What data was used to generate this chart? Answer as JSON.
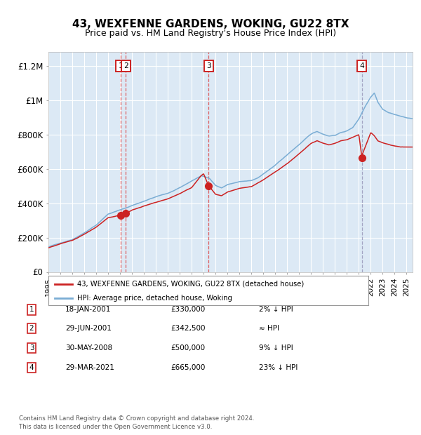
{
  "title": "43, WEXFENNE GARDENS, WOKING, GU22 8TX",
  "subtitle": "Price paid vs. HM Land Registry's House Price Index (HPI)",
  "bg_color": "#dce9f5",
  "hpi_line_color": "#7aadd4",
  "price_line_color": "#cc2222",
  "sale_dot_color": "#cc2222",
  "grid_color": "#ffffff",
  "sale_events": [
    {
      "label": "1",
      "date_x": 2001.05,
      "price": 330000
    },
    {
      "label": "2",
      "date_x": 2001.49,
      "price": 342500
    },
    {
      "label": "3",
      "date_x": 2008.41,
      "price": 500000
    },
    {
      "label": "4",
      "date_x": 2021.24,
      "price": 665000
    }
  ],
  "vline_red_dates": [
    2001.05,
    2001.49,
    2008.41
  ],
  "vline_gray_dates": [
    2021.24
  ],
  "xlim": [
    1995.0,
    2025.5
  ],
  "ylim": [
    0,
    1280000
  ],
  "yticks": [
    0,
    200000,
    400000,
    600000,
    800000,
    1000000,
    1200000
  ],
  "ytick_labels": [
    "£0",
    "£200K",
    "£400K",
    "£600K",
    "£800K",
    "£1M",
    "£1.2M"
  ],
  "xticks": [
    1995,
    1996,
    1997,
    1998,
    1999,
    2000,
    2001,
    2002,
    2003,
    2004,
    2005,
    2006,
    2007,
    2008,
    2009,
    2010,
    2011,
    2012,
    2013,
    2014,
    2015,
    2016,
    2017,
    2018,
    2019,
    2020,
    2021,
    2022,
    2023,
    2024,
    2025
  ],
  "legend_price_label": "43, WEXFENNE GARDENS, WOKING, GU22 8TX (detached house)",
  "legend_hpi_label": "HPI: Average price, detached house, Woking",
  "table_rows": [
    {
      "num": "1",
      "date": "18-JAN-2001",
      "price": "£330,000",
      "rel": "2% ↓ HPI"
    },
    {
      "num": "2",
      "date": "29-JUN-2001",
      "price": "£342,500",
      "rel": "≈ HPI"
    },
    {
      "num": "3",
      "date": "30-MAY-2008",
      "price": "£500,000",
      "rel": "9% ↓ HPI"
    },
    {
      "num": "4",
      "date": "29-MAR-2021",
      "price": "£665,000",
      "rel": "23% ↓ HPI"
    }
  ],
  "copyright_text": "Contains HM Land Registry data © Crown copyright and database right 2024.\nThis data is licensed under the Open Government Licence v3.0.",
  "box_labels": [
    {
      "label": "1",
      "x": 2001.05,
      "align": "right"
    },
    {
      "label": "2",
      "x": 2001.49,
      "align": "left"
    },
    {
      "label": "3",
      "x": 2008.41,
      "align": "center"
    },
    {
      "label": "4",
      "x": 2021.24,
      "align": "center"
    }
  ]
}
